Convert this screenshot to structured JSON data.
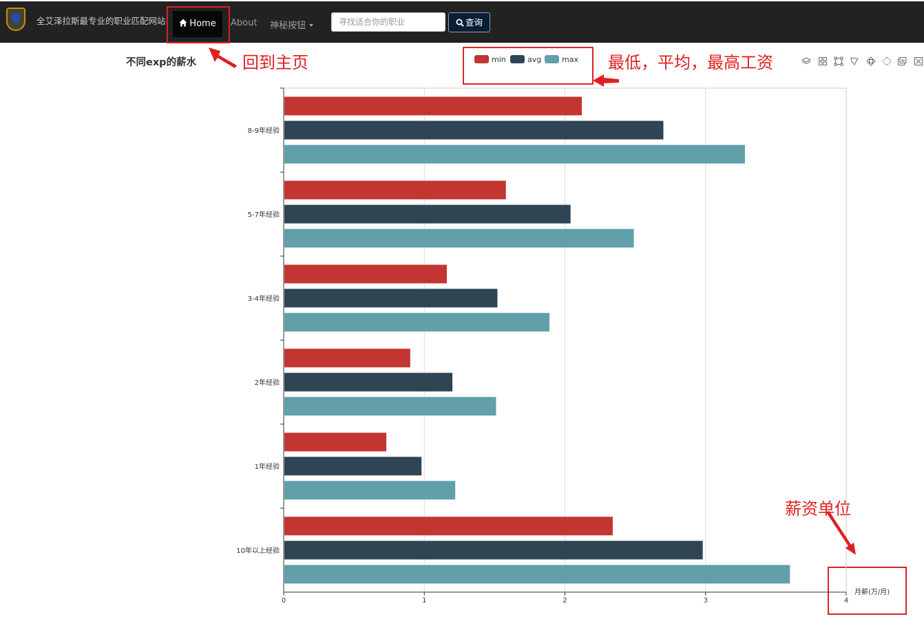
{
  "navbar": {
    "brand": "全艾泽拉斯最专业的职业匹配网站",
    "home_label": "Home",
    "about_label": "About",
    "secret_label": "神秘按钮",
    "search_placeholder": "寻找适合你的职业",
    "search_button_label": "查询"
  },
  "annotations": {
    "home": "回到主页",
    "legend": "最低，平均，最高工资",
    "unit": "薪资单位"
  },
  "colors": {
    "navbar_bg": "#222222",
    "annotation": "#e02020",
    "min": "#c23531",
    "avg": "#2f4554",
    "max": "#61a0a8"
  },
  "toolbox_icons": [
    "stack-icon",
    "tiled-icon",
    "rect-select-icon",
    "lasso-icon",
    "clear-select-icon",
    "keep-select-icon",
    "data-view-icon",
    "restore-icon"
  ],
  "chart_data": {
    "type": "bar",
    "orientation": "horizontal",
    "title": "不同exp的薪水",
    "categories": [
      "10年以上经验",
      "1年经验",
      "2年经验",
      "3-4年经验",
      "5-7年经验",
      "8-9年经验"
    ],
    "series": [
      {
        "name": "min",
        "values": [
          2.34,
          0.73,
          0.9,
          1.16,
          1.58,
          2.12
        ]
      },
      {
        "name": "avg",
        "values": [
          2.98,
          0.98,
          1.2,
          1.52,
          2.04,
          2.7
        ]
      },
      {
        "name": "max",
        "values": [
          3.6,
          1.22,
          1.51,
          1.89,
          2.49,
          3.28
        ]
      }
    ],
    "xlabel": "月薪(万/月)",
    "ylabel": "",
    "xlim": [
      0,
      4
    ],
    "xticks": [
      "0",
      "1",
      "2",
      "3",
      "4"
    ],
    "grid": true,
    "legend_position": "top"
  }
}
